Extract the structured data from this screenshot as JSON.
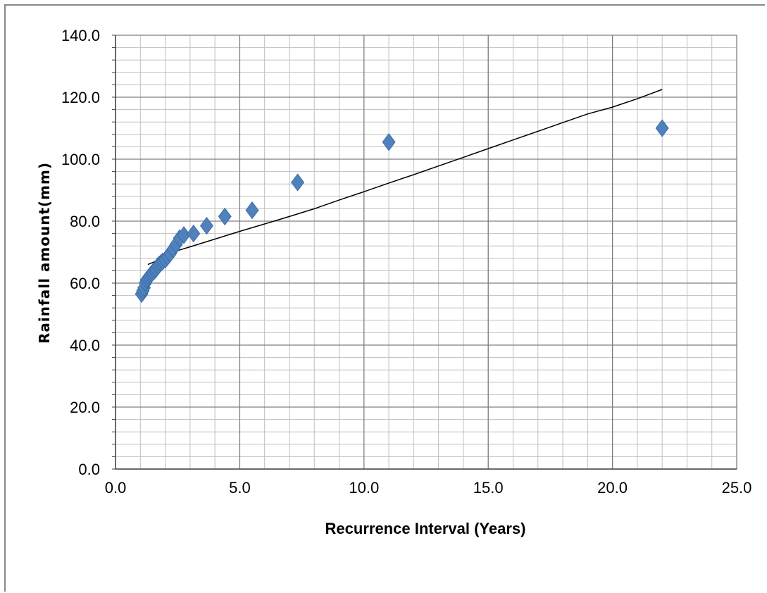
{
  "chart_data": {
    "type": "scatter",
    "title": "",
    "xlabel": "Recurrence Interval (Years)",
    "ylabel": "Rainfall amount(mm)",
    "xlim": [
      0,
      25
    ],
    "ylim": [
      0,
      140
    ],
    "x_ticks": [
      "0.0",
      "5.0",
      "10.0",
      "15.0",
      "20.0",
      "25.0"
    ],
    "y_ticks": [
      "0.0",
      "20.0",
      "40.0",
      "60.0",
      "80.0",
      "100.0",
      "120.0",
      "140.0"
    ],
    "grid": true,
    "legend": "none",
    "colors": {
      "marker": "#4F81BD",
      "trendline": "#000000",
      "major_grid": "#7f7f7f",
      "minor_grid": "#bfbfbf"
    },
    "series": [
      {
        "marker": "diamond",
        "points": [
          [
            1.05,
            56.5
          ],
          [
            1.1,
            57.5
          ],
          [
            1.15,
            58.5
          ],
          [
            1.2,
            60.0
          ],
          [
            1.25,
            61.0
          ],
          [
            1.3,
            61.5
          ],
          [
            1.35,
            62.0
          ],
          [
            1.4,
            62.5
          ],
          [
            1.45,
            63.0
          ],
          [
            1.5,
            63.5
          ],
          [
            1.57,
            64.0
          ],
          [
            1.63,
            64.5
          ],
          [
            1.7,
            65.5
          ],
          [
            1.76,
            66.0
          ],
          [
            1.83,
            66.5
          ],
          [
            1.9,
            67.0
          ],
          [
            2.0,
            67.5
          ],
          [
            2.1,
            68.5
          ],
          [
            2.2,
            69.5
          ],
          [
            2.32,
            71.0
          ],
          [
            2.44,
            72.5
          ],
          [
            2.58,
            74.5
          ],
          [
            2.75,
            75.5
          ],
          [
            3.14,
            76.0
          ],
          [
            3.67,
            78.5
          ],
          [
            4.4,
            81.5
          ],
          [
            5.5,
            83.5
          ],
          [
            7.33,
            92.5
          ],
          [
            11.0,
            105.5
          ],
          [
            22.0,
            110.0
          ]
        ]
      }
    ],
    "trendline": {
      "type": "logarithmic",
      "points": [
        [
          1.3,
          66.0
        ],
        [
          1.6,
          67.0
        ],
        [
          2.0,
          69.0
        ],
        [
          2.5,
          70.5
        ],
        [
          3.0,
          71.7
        ],
        [
          4.0,
          74.2
        ],
        [
          5.0,
          76.7
        ],
        [
          6.0,
          79.1
        ],
        [
          7.0,
          81.5
        ],
        [
          8.0,
          84.0
        ],
        [
          9.0,
          86.8
        ],
        [
          10.0,
          89.5
        ],
        [
          11.0,
          92.3
        ],
        [
          12.0,
          95.0
        ],
        [
          13.0,
          97.8
        ],
        [
          14.0,
          100.6
        ],
        [
          15.0,
          103.4
        ],
        [
          16.0,
          106.2
        ],
        [
          17.0,
          109.0
        ],
        [
          18.0,
          111.8
        ],
        [
          19.0,
          114.6
        ],
        [
          20.0,
          116.8
        ],
        [
          21.0,
          119.5
        ],
        [
          22.0,
          122.5
        ]
      ]
    }
  }
}
